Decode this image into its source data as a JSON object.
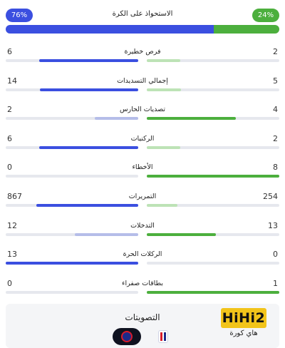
{
  "possession": {
    "label": "الاستحواذ على الكرة",
    "left_value": "76%",
    "right_value": "24%",
    "left_fraction": 0.76,
    "right_fraction": 0.24
  },
  "stats": [
    {
      "label": "فرص خطيرة",
      "left": "6",
      "right": "2",
      "left_fraction": 0.75,
      "right_fraction": 0.25,
      "left_strong": true
    },
    {
      "label": "إجمالي التسديدات",
      "left": "14",
      "right": "5",
      "left_fraction": 0.74,
      "right_fraction": 0.26,
      "left_strong": true
    },
    {
      "label": "تصديات الحارس",
      "left": "2",
      "right": "4",
      "left_fraction": 0.33,
      "right_fraction": 0.67,
      "left_strong": false
    },
    {
      "label": "الركنيات",
      "left": "6",
      "right": "2",
      "left_fraction": 0.75,
      "right_fraction": 0.25,
      "left_strong": true
    },
    {
      "label": "الأخطاء",
      "left": "0",
      "right": "8",
      "left_fraction": 0.0,
      "right_fraction": 1.0,
      "left_strong": false
    },
    {
      "label": "التمريرات",
      "left": "867",
      "right": "254",
      "left_fraction": 0.77,
      "right_fraction": 0.23,
      "left_strong": true
    },
    {
      "label": "التدخلات",
      "left": "12",
      "right": "13",
      "left_fraction": 0.48,
      "right_fraction": 0.52,
      "left_strong": false
    },
    {
      "label": "الركلات الحرة",
      "left": "13",
      "right": "0",
      "left_fraction": 1.0,
      "right_fraction": 0.0,
      "left_strong": true
    },
    {
      "label": "بطاقات صفراء",
      "left": "0",
      "right": "1",
      "left_fraction": 0.0,
      "right_fraction": 1.0,
      "left_strong": false
    }
  ],
  "votes": {
    "title": "التصويتات"
  },
  "watermark": {
    "brand": "HiHi2",
    "subtitle": "هاي كورة"
  },
  "colors": {
    "blue": "#3b4fe0",
    "blue_light": "#b5bde9",
    "green": "#4caf3d",
    "green_light": "#bde3b6",
    "track": "#e6e8ee"
  }
}
